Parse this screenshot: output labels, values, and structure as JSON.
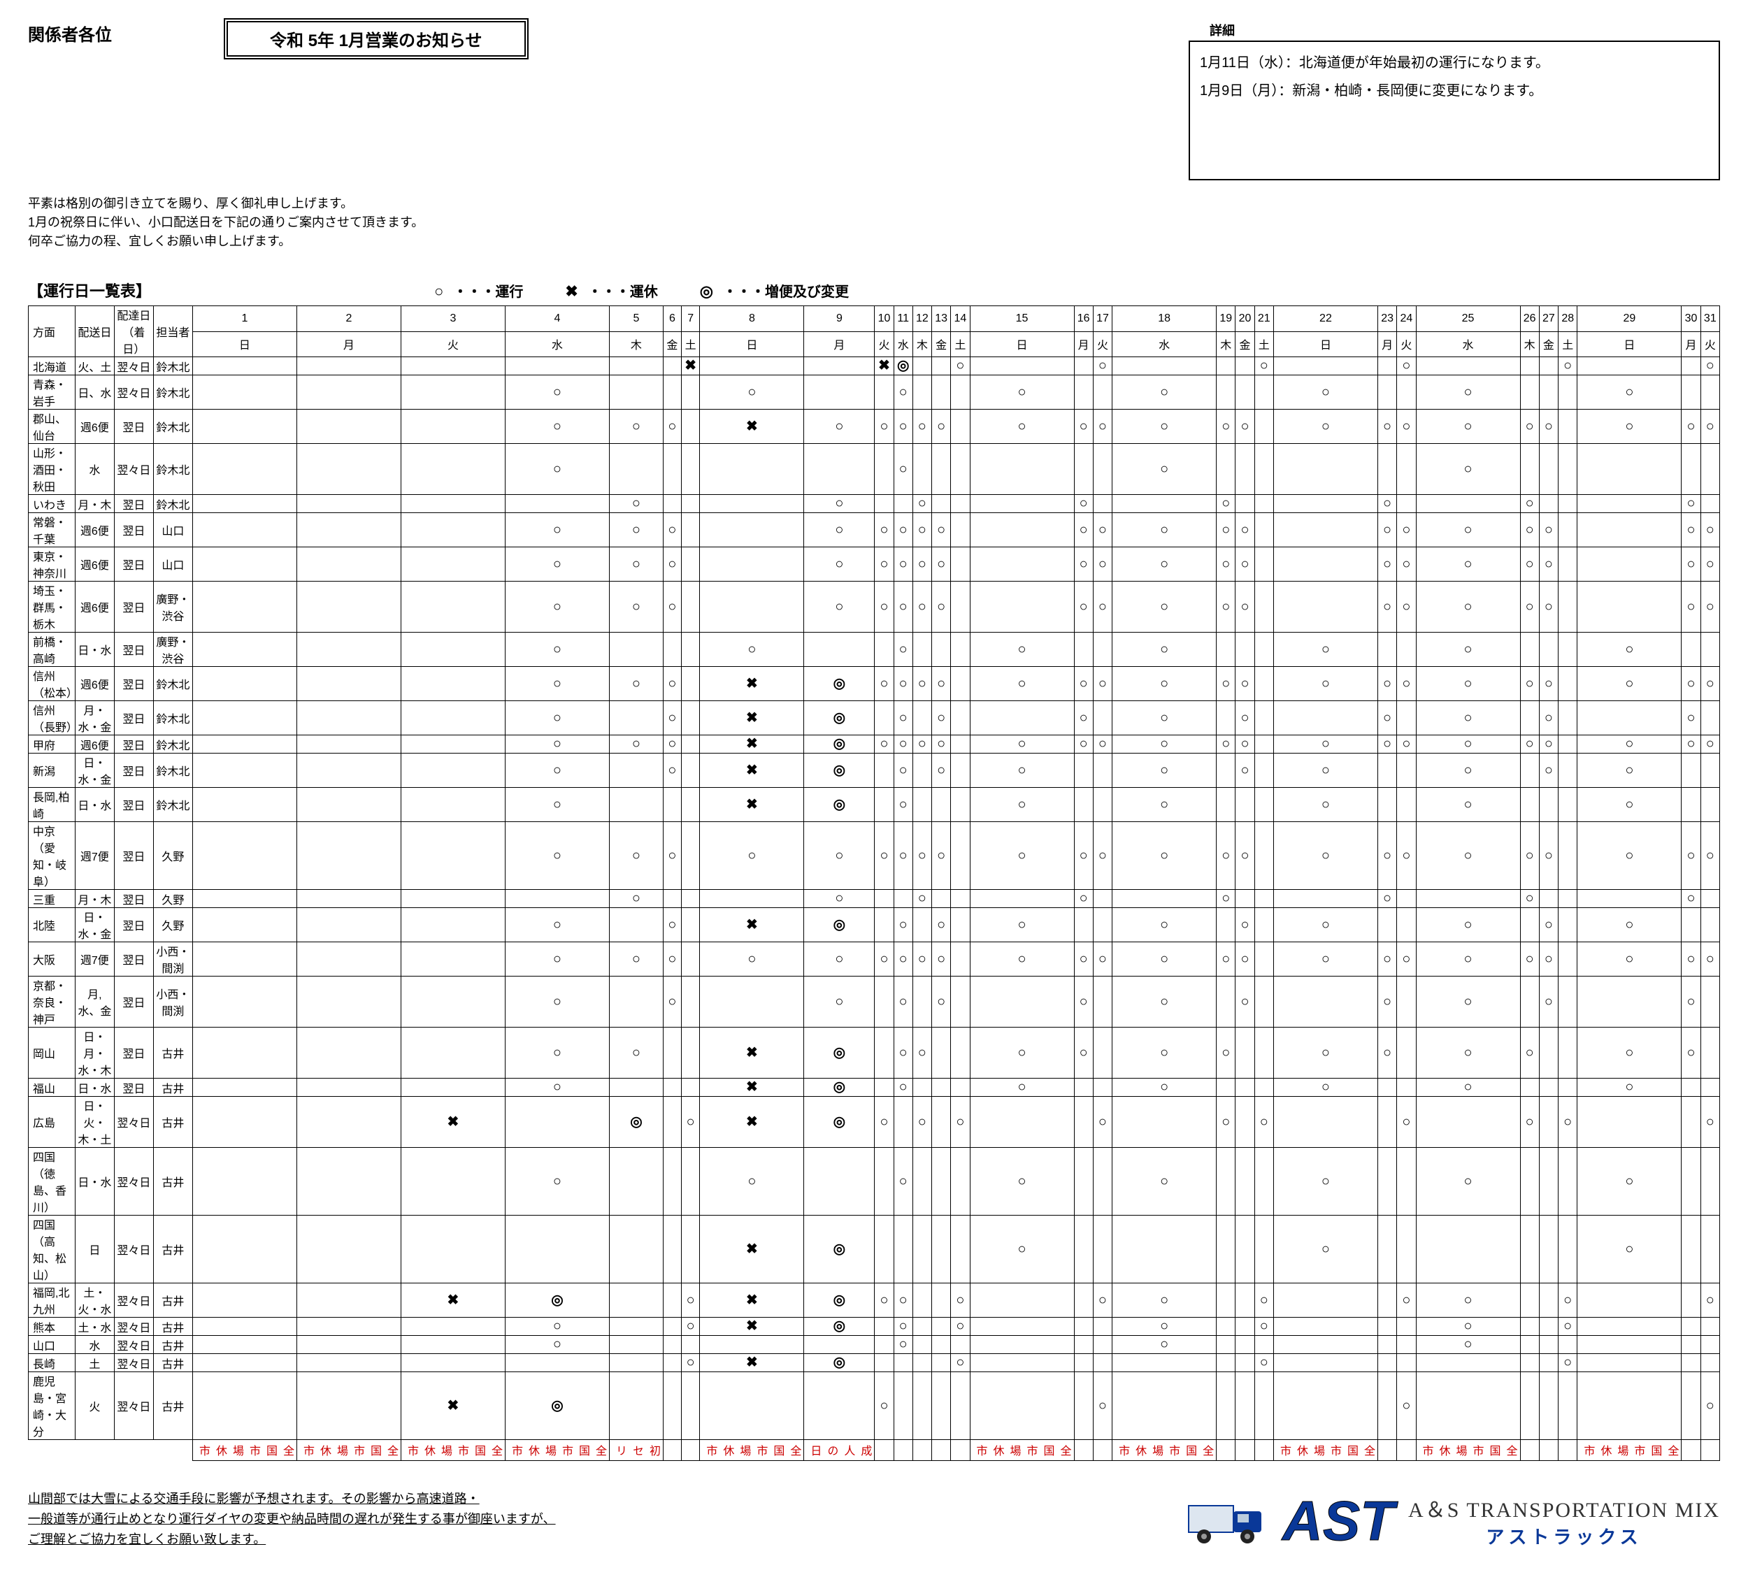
{
  "addressee": "関係者各位",
  "title": "令和 5年 1月営業のお知らせ",
  "details_label": "詳細",
  "details_lines": [
    "1月11日（水）：北海道便が年始最初の運行になります。",
    "1月9日（月）：新潟・柏崎・長岡便に変更になります。"
  ],
  "intro_lines": [
    "平素は格別の御引き立てを賜り、厚く御礼申し上げます。",
    "1月の祝祭日に伴い、小口配送日を下記の通りご案内させて頂きます。",
    "何卒ご協力の程、宜しくお願い申し上げます。"
  ],
  "section_title": "【運行日一覧表】",
  "legend": [
    {
      "sym": "○",
      "label": "・・・運行"
    },
    {
      "sym": "✖",
      "label": "・・・運休"
    },
    {
      "sym": "◎",
      "label": "・・・増便及び変更"
    }
  ],
  "headers": {
    "dest": "方面",
    "ship": "配送日",
    "deliv": "配達日（着日）",
    "staff": "担当者"
  },
  "days": [
    "1",
    "2",
    "3",
    "4",
    "5",
    "6",
    "7",
    "8",
    "9",
    "10",
    "11",
    "12",
    "13",
    "14",
    "15",
    "16",
    "17",
    "18",
    "19",
    "20",
    "21",
    "22",
    "23",
    "24",
    "25",
    "26",
    "27",
    "28",
    "29",
    "30",
    "31"
  ],
  "weekdays": [
    "日",
    "月",
    "火",
    "水",
    "木",
    "金",
    "土",
    "日",
    "月",
    "火",
    "水",
    "木",
    "金",
    "土",
    "日",
    "月",
    "火",
    "水",
    "木",
    "金",
    "土",
    "日",
    "月",
    "火",
    "水",
    "木",
    "金",
    "土",
    "日",
    "月",
    "火"
  ],
  "routes": [
    {
      "dest": "北海道",
      "ship": "火、土",
      "deliv": "翌々日",
      "staff": "鈴木北",
      "marks": {
        "7": "✖",
        "10": "✖",
        "11": "◎",
        "14": "○",
        "17": "○",
        "21": "○",
        "24": "○",
        "28": "○",
        "31": "○"
      }
    },
    {
      "dest": "青森・岩手",
      "ship": "日、水",
      "deliv": "翌々日",
      "staff": "鈴木北",
      "marks": {
        "4": "○",
        "8": "○",
        "11": "○",
        "15": "○",
        "18": "○",
        "22": "○",
        "25": "○",
        "29": "○"
      }
    },
    {
      "dest": "郡山、仙台",
      "ship": "週6便",
      "deliv": "翌日",
      "staff": "鈴木北",
      "marks": {
        "4": "○",
        "5": "○",
        "6": "○",
        "8": "✖",
        "9": "○",
        "10": "○",
        "11": "○",
        "12": "○",
        "13": "○",
        "15": "○",
        "16": "○",
        "17": "○",
        "18": "○",
        "19": "○",
        "20": "○",
        "22": "○",
        "23": "○",
        "24": "○",
        "25": "○",
        "26": "○",
        "27": "○",
        "29": "○",
        "30": "○",
        "31": "○"
      }
    },
    {
      "dest": "山形・酒田・秋田",
      "ship": "水",
      "deliv": "翌々日",
      "staff": "鈴木北",
      "marks": {
        "4": "○",
        "11": "○",
        "18": "○",
        "25": "○"
      }
    },
    {
      "dest": "いわき",
      "ship": "月・木",
      "deliv": "翌日",
      "staff": "鈴木北",
      "marks": {
        "5": "○",
        "9": "○",
        "12": "○",
        "16": "○",
        "19": "○",
        "23": "○",
        "26": "○",
        "30": "○"
      }
    },
    {
      "dest": "常磐・千葉",
      "ship": "週6便",
      "deliv": "翌日",
      "staff": "山口",
      "marks": {
        "4": "○",
        "5": "○",
        "6": "○",
        "9": "○",
        "10": "○",
        "11": "○",
        "12": "○",
        "13": "○",
        "16": "○",
        "17": "○",
        "18": "○",
        "19": "○",
        "20": "○",
        "23": "○",
        "24": "○",
        "25": "○",
        "26": "○",
        "27": "○",
        "30": "○",
        "31": "○"
      }
    },
    {
      "dest": "東京・神奈川",
      "ship": "週6便",
      "deliv": "翌日",
      "staff": "山口",
      "marks": {
        "4": "○",
        "5": "○",
        "6": "○",
        "9": "○",
        "10": "○",
        "11": "○",
        "12": "○",
        "13": "○",
        "16": "○",
        "17": "○",
        "18": "○",
        "19": "○",
        "20": "○",
        "23": "○",
        "24": "○",
        "25": "○",
        "26": "○",
        "27": "○",
        "30": "○",
        "31": "○"
      }
    },
    {
      "dest": "埼玉・群馬・栃木",
      "ship": "週6便",
      "deliv": "翌日",
      "staff": "廣野・渋谷",
      "marks": {
        "4": "○",
        "5": "○",
        "6": "○",
        "9": "○",
        "10": "○",
        "11": "○",
        "12": "○",
        "13": "○",
        "16": "○",
        "17": "○",
        "18": "○",
        "19": "○",
        "20": "○",
        "23": "○",
        "24": "○",
        "25": "○",
        "26": "○",
        "27": "○",
        "30": "○",
        "31": "○"
      }
    },
    {
      "dest": "前橋・高崎",
      "ship": "日・水",
      "deliv": "翌日",
      "staff": "廣野・渋谷",
      "marks": {
        "4": "○",
        "8": "○",
        "11": "○",
        "15": "○",
        "18": "○",
        "22": "○",
        "25": "○",
        "29": "○"
      }
    },
    {
      "dest": "信州（松本）",
      "ship": "週6便",
      "deliv": "翌日",
      "staff": "鈴木北",
      "marks": {
        "4": "○",
        "5": "○",
        "6": "○",
        "8": "✖",
        "9": "◎",
        "10": "○",
        "11": "○",
        "12": "○",
        "13": "○",
        "15": "○",
        "16": "○",
        "17": "○",
        "18": "○",
        "19": "○",
        "20": "○",
        "22": "○",
        "23": "○",
        "24": "○",
        "25": "○",
        "26": "○",
        "27": "○",
        "29": "○",
        "30": "○",
        "31": "○"
      }
    },
    {
      "dest": "信州（長野）",
      "ship": "月・水・金",
      "deliv": "翌日",
      "staff": "鈴木北",
      "marks": {
        "4": "○",
        "6": "○",
        "8": "✖",
        "9": "◎",
        "11": "○",
        "13": "○",
        "16": "○",
        "18": "○",
        "20": "○",
        "23": "○",
        "25": "○",
        "27": "○",
        "30": "○"
      }
    },
    {
      "dest": "甲府",
      "ship": "週6便",
      "deliv": "翌日",
      "staff": "鈴木北",
      "marks": {
        "4": "○",
        "5": "○",
        "6": "○",
        "8": "✖",
        "9": "◎",
        "10": "○",
        "11": "○",
        "12": "○",
        "13": "○",
        "15": "○",
        "16": "○",
        "17": "○",
        "18": "○",
        "19": "○",
        "20": "○",
        "22": "○",
        "23": "○",
        "24": "○",
        "25": "○",
        "26": "○",
        "27": "○",
        "29": "○",
        "30": "○",
        "31": "○"
      }
    },
    {
      "dest": "新潟",
      "ship": "日・水・金",
      "deliv": "翌日",
      "staff": "鈴木北",
      "marks": {
        "4": "○",
        "6": "○",
        "8": "✖",
        "9": "◎",
        "11": "○",
        "13": "○",
        "15": "○",
        "18": "○",
        "20": "○",
        "22": "○",
        "25": "○",
        "27": "○",
        "29": "○"
      }
    },
    {
      "dest": "長岡,柏崎",
      "ship": "日・水",
      "deliv": "翌日",
      "staff": "鈴木北",
      "marks": {
        "4": "○",
        "8": "✖",
        "9": "◎",
        "11": "○",
        "15": "○",
        "18": "○",
        "22": "○",
        "25": "○",
        "29": "○"
      }
    },
    {
      "dest": "中京（愛知・岐阜）",
      "ship": "週7便",
      "deliv": "翌日",
      "staff": "久野",
      "tiny": true,
      "marks": {
        "4": "○",
        "5": "○",
        "6": "○",
        "8": "○",
        "9": "○",
        "10": "○",
        "11": "○",
        "12": "○",
        "13": "○",
        "15": "○",
        "16": "○",
        "17": "○",
        "18": "○",
        "19": "○",
        "20": "○",
        "22": "○",
        "23": "○",
        "24": "○",
        "25": "○",
        "26": "○",
        "27": "○",
        "29": "○",
        "30": "○",
        "31": "○"
      }
    },
    {
      "dest": "三重",
      "ship": "月・木",
      "deliv": "翌日",
      "staff": "久野",
      "tiny": true,
      "marks": {
        "5": "○",
        "9": "○",
        "12": "○",
        "16": "○",
        "19": "○",
        "23": "○",
        "26": "○",
        "30": "○"
      }
    },
    {
      "dest": "北陸",
      "ship": "日・水・金",
      "deliv": "翌日",
      "staff": "久野",
      "marks": {
        "4": "○",
        "6": "○",
        "8": "✖",
        "9": "◎",
        "11": "○",
        "13": "○",
        "15": "○",
        "18": "○",
        "20": "○",
        "22": "○",
        "25": "○",
        "27": "○",
        "29": "○"
      }
    },
    {
      "dest": "大阪",
      "ship": "週7便",
      "deliv": "翌日",
      "staff": "小西・間渕",
      "marks": {
        "4": "○",
        "5": "○",
        "6": "○",
        "8": "○",
        "9": "○",
        "10": "○",
        "11": "○",
        "12": "○",
        "13": "○",
        "15": "○",
        "16": "○",
        "17": "○",
        "18": "○",
        "19": "○",
        "20": "○",
        "22": "○",
        "23": "○",
        "24": "○",
        "25": "○",
        "26": "○",
        "27": "○",
        "29": "○",
        "30": "○",
        "31": "○"
      }
    },
    {
      "dest": "京都・奈良・神戸",
      "ship": "月,水、金",
      "deliv": "翌日",
      "staff": "小西・間渕",
      "marks": {
        "4": "○",
        "6": "○",
        "9": "○",
        "11": "○",
        "13": "○",
        "16": "○",
        "18": "○",
        "20": "○",
        "23": "○",
        "25": "○",
        "27": "○",
        "30": "○"
      }
    },
    {
      "dest": "岡山",
      "ship": "日・月・水・木",
      "deliv": "翌日",
      "staff": "古井",
      "marks": {
        "4": "○",
        "5": "○",
        "8": "✖",
        "9": "◎",
        "11": "○",
        "12": "○",
        "15": "○",
        "16": "○",
        "18": "○",
        "19": "○",
        "22": "○",
        "23": "○",
        "25": "○",
        "26": "○",
        "29": "○",
        "30": "○"
      }
    },
    {
      "dest": "福山",
      "ship": "日・水",
      "deliv": "翌日",
      "staff": "古井",
      "marks": {
        "4": "○",
        "8": "✖",
        "9": "◎",
        "11": "○",
        "15": "○",
        "18": "○",
        "22": "○",
        "25": "○",
        "29": "○"
      }
    },
    {
      "dest": "広島",
      "ship": "日・火・木・土",
      "deliv": "翌々日",
      "staff": "古井",
      "marks": {
        "3": "✖",
        "5": "◎",
        "7": "○",
        "8": "✖",
        "9": "◎",
        "10": "○",
        "12": "○",
        "14": "○",
        "17": "○",
        "19": "○",
        "21": "○",
        "24": "○",
        "26": "○",
        "28": "○",
        "31": "○"
      }
    },
    {
      "dest": "四国（徳島、香川）",
      "ship": "日・水",
      "deliv": "翌々日",
      "staff": "古井",
      "marks": {
        "4": "○",
        "8": "○",
        "11": "○",
        "15": "○",
        "18": "○",
        "22": "○",
        "25": "○",
        "29": "○"
      }
    },
    {
      "dest": "四国（高知、松山）",
      "ship": "日",
      "deliv": "翌々日",
      "staff": "古井",
      "marks": {
        "8": "✖",
        "9": "◎",
        "15": "○",
        "22": "○",
        "29": "○"
      }
    },
    {
      "dest": "福岡,北九州",
      "ship": "土・火・水",
      "deliv": "翌々日",
      "staff": "古井",
      "marks": {
        "3": "✖",
        "4": "◎",
        "7": "○",
        "8": "✖",
        "9": "◎",
        "10": "○",
        "11": "○",
        "14": "○",
        "17": "○",
        "18": "○",
        "21": "○",
        "24": "○",
        "25": "○",
        "28": "○",
        "31": "○"
      }
    },
    {
      "dest": "熊本",
      "ship": "土・水",
      "deliv": "翌々日",
      "staff": "古井",
      "marks": {
        "4": "○",
        "7": "○",
        "8": "✖",
        "9": "◎",
        "11": "○",
        "14": "○",
        "18": "○",
        "21": "○",
        "25": "○",
        "28": "○"
      }
    },
    {
      "dest": "山口",
      "ship": "水",
      "deliv": "翌々日",
      "staff": "古井",
      "marks": {
        "4": "○",
        "11": "○",
        "18": "○",
        "25": "○"
      }
    },
    {
      "dest": "長崎",
      "ship": "土",
      "deliv": "翌々日",
      "staff": "古井",
      "marks": {
        "7": "○",
        "8": "✖",
        "9": "◎",
        "14": "○",
        "21": "○",
        "28": "○"
      }
    },
    {
      "dest": "鹿児島・宮崎・大分",
      "ship": "火",
      "deliv": "翌々日",
      "staff": "古井",
      "marks": {
        "3": "✖",
        "4": "◎",
        "10": "○",
        "17": "○",
        "24": "○",
        "31": "○"
      }
    }
  ],
  "day_notes": {
    "1": "全国市場休市",
    "2": "全国市場休市",
    "3": "全国市場休市",
    "4": "全国市場休市",
    "5": "初セリ",
    "8": "全国市場休市",
    "9": "成人の日",
    "15": "全国市場休市",
    "18": "全国市場休市",
    "22": "全国市場休市",
    "25": "全国市場休市",
    "29": "全国市場休市"
  },
  "foot_note_lines": [
    "山間部では大雪による交通手段に影響が予想されます。その影響から高速道路・",
    "一般道等が通行止めとなり運行ダイヤの変更や納品時間の遅れが発生する事が御座いますが、",
    "ご理解とご協力を宜しくお願い致します。"
  ],
  "company_en": "A＆S  TRANSPORTATION  MIX",
  "company_jp": "アストラックス",
  "ast_logo_text": "AST",
  "colors": {
    "accent": "#0a3898",
    "note_red": "#c00"
  }
}
